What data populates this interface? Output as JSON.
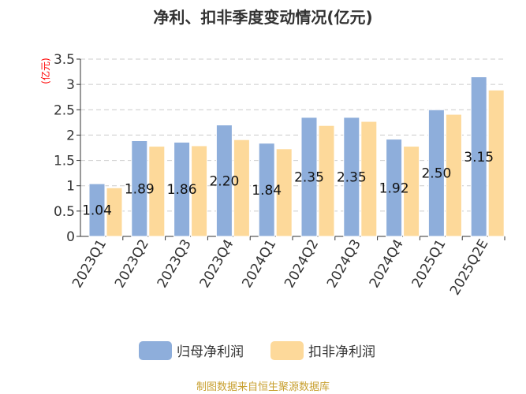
{
  "title": "净利、扣非季度变动情况(亿元)",
  "source": "制图数据来自恒生聚源数据库",
  "colors": {
    "series1": "#8eaedb",
    "series2": "#fdd99a",
    "axis_unit": "#ff0000"
  },
  "chart_data": {
    "type": "bar",
    "title": "净利、扣非季度变动情况(亿元)",
    "ylabel": "(亿元)",
    "xlabel": "",
    "ylim": [
      0,
      3.5
    ],
    "yticks": [
      "0",
      "0.5",
      "1",
      "1.5",
      "2",
      "2.5",
      "3",
      "3.5"
    ],
    "grid": true,
    "legend": "bottom",
    "categories": [
      "2023Q1",
      "2023Q2",
      "2023Q3",
      "2023Q4",
      "2024Q1",
      "2024Q2",
      "2024Q3",
      "2024Q4",
      "2025Q1",
      "2025Q2E"
    ],
    "series": [
      {
        "name": "归母净利润",
        "values": [
          1.04,
          1.89,
          1.86,
          2.2,
          1.84,
          2.35,
          2.35,
          1.92,
          2.5,
          3.15
        ],
        "labels": [
          "1.04",
          "1.89",
          "1.86",
          "2.20",
          "1.84",
          "2.35",
          "2.35",
          "1.92",
          "2.50",
          "3.15"
        ]
      },
      {
        "name": "扣非净利润",
        "values": [
          0.96,
          1.78,
          1.79,
          1.91,
          1.73,
          2.19,
          2.27,
          1.78,
          2.41,
          2.89
        ]
      }
    ]
  }
}
